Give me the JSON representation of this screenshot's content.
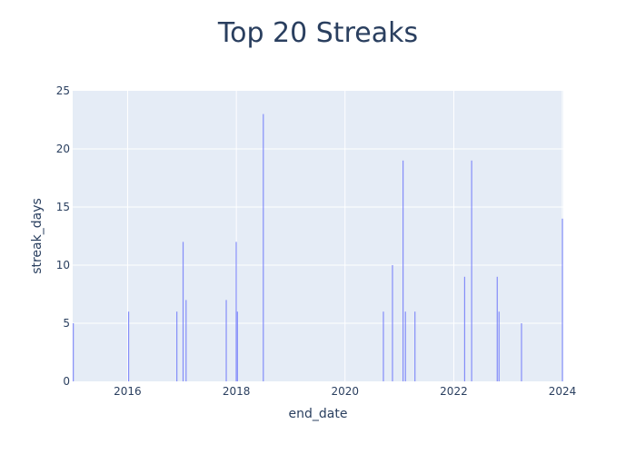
{
  "chart_data": {
    "type": "bar",
    "title": "Top 20 Streaks",
    "xlabel": "end_date",
    "ylabel": "streak_days",
    "x_axis_type": "date",
    "xlim": [
      "2014-12-28",
      "2024-01-07"
    ],
    "ylim": [
      0,
      25
    ],
    "x_ticks": [
      "2016",
      "2018",
      "2020",
      "2022",
      "2024"
    ],
    "y_ticks": [
      0,
      5,
      10,
      15,
      20,
      25
    ],
    "grid": true,
    "bar_color": "#636efa",
    "plot_background": "#e5ecf6",
    "points": [
      {
        "x": "2015-01-01",
        "y": 5
      },
      {
        "x": "2016-01-08",
        "y": 6
      },
      {
        "x": "2016-11-27",
        "y": 6
      },
      {
        "x": "2017-01-08",
        "y": 12
      },
      {
        "x": "2017-01-28",
        "y": 7
      },
      {
        "x": "2017-10-25",
        "y": 7
      },
      {
        "x": "2017-12-31",
        "y": 12
      },
      {
        "x": "2018-01-08",
        "y": 6
      },
      {
        "x": "2018-07-01",
        "y": 23
      },
      {
        "x": "2020-09-15",
        "y": 6
      },
      {
        "x": "2020-11-15",
        "y": 10
      },
      {
        "x": "2021-01-25",
        "y": 19
      },
      {
        "x": "2021-02-10",
        "y": 6
      },
      {
        "x": "2021-04-15",
        "y": 6
      },
      {
        "x": "2022-03-15",
        "y": 9
      },
      {
        "x": "2022-05-01",
        "y": 19
      },
      {
        "x": "2022-10-20",
        "y": 9
      },
      {
        "x": "2022-11-01",
        "y": 6
      },
      {
        "x": "2023-04-01",
        "y": 5
      },
      {
        "x": "2024-01-01",
        "y": 14
      }
    ]
  }
}
